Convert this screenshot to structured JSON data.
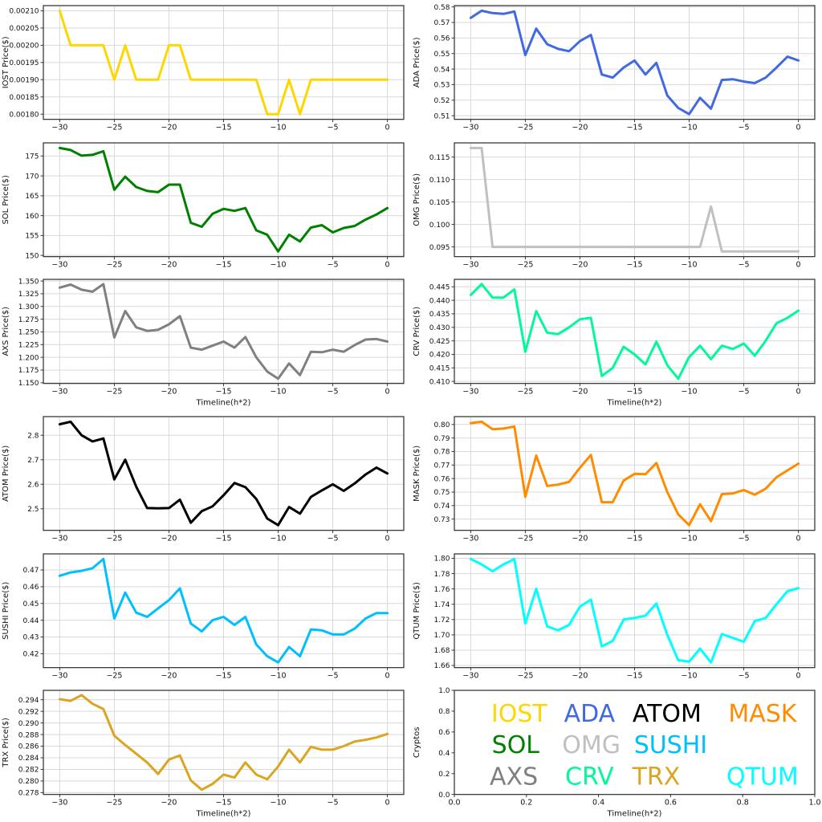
{
  "style": {
    "background": "#ffffff",
    "grid_color": "#d9d9d9",
    "spine_color": "#3a3a3a",
    "tick_label_color": "#111111"
  },
  "chart_data": {
    "type": "line",
    "layout": "6x2-multi-panel",
    "x": [
      -30,
      -29,
      -28,
      -27,
      -26,
      -25,
      -24,
      -23,
      -22,
      -21,
      -20,
      -19,
      -18,
      -17,
      -16,
      -15,
      -14,
      -13,
      -12,
      -11,
      -10,
      -9,
      -8,
      -7,
      -6,
      -5,
      -4,
      -3,
      -2,
      -1,
      0
    ],
    "xticks": [
      -30,
      -25,
      -20,
      -15,
      -10,
      -5,
      0
    ],
    "xlabel": "Timeline(h*2)",
    "grid": true,
    "panels": [
      {
        "name": "IOST",
        "ylabel": "IOST Price($)",
        "color": "#FFD700",
        "decimals": 5,
        "show_xlabel": false,
        "yticks": [
          0.0018,
          0.00185,
          0.0019,
          0.00195,
          0.002,
          0.00205,
          0.0021
        ],
        "values": [
          0.0021,
          0.002,
          0.002,
          0.002,
          0.002,
          0.0019,
          0.002,
          0.0019,
          0.0019,
          0.0019,
          0.002,
          0.002,
          0.0019,
          0.0019,
          0.0019,
          0.0019,
          0.0019,
          0.0019,
          0.0019,
          0.0018,
          0.0018,
          0.0019,
          0.0018,
          0.0019,
          0.0019,
          0.0019,
          0.0019,
          0.0019,
          0.0019,
          0.0019,
          0.0019
        ]
      },
      {
        "name": "ADA",
        "ylabel": "ADA Price($)",
        "color": "#4169E1",
        "decimals": 2,
        "show_xlabel": false,
        "yticks": [
          0.51,
          0.52,
          0.53,
          0.54,
          0.55,
          0.56,
          0.57,
          0.58
        ],
        "values": [
          0.573,
          0.5775,
          0.576,
          0.5755,
          0.577,
          0.549,
          0.566,
          0.556,
          0.553,
          0.5515,
          0.558,
          0.562,
          0.5365,
          0.5345,
          0.541,
          0.5455,
          0.5365,
          0.544,
          0.523,
          0.515,
          0.511,
          0.5215,
          0.5145,
          0.533,
          0.5335,
          0.532,
          0.531,
          0.5345,
          0.541,
          0.548,
          0.5455
        ]
      },
      {
        "name": "SOL",
        "ylabel": "SOL Price($)",
        "color": "#008000",
        "decimals": 0,
        "show_xlabel": false,
        "yticks": [
          150,
          155,
          160,
          165,
          170,
          175
        ],
        "values": [
          177,
          176.5,
          175.1,
          175.3,
          176.2,
          166.5,
          169.8,
          167.2,
          166.2,
          165.9,
          167.8,
          167.8,
          158.2,
          157.2,
          160.5,
          161.7,
          161.2,
          161.9,
          156.3,
          155.2,
          151,
          155.2,
          153.5,
          157,
          157.6,
          155.8,
          156.9,
          157.4,
          159,
          160.3,
          161.9
        ]
      },
      {
        "name": "OMG",
        "ylabel": "OMG Price($)",
        "color": "#C0C0C0",
        "decimals": 3,
        "show_xlabel": false,
        "yticks": [
          0.095,
          0.1,
          0.105,
          0.11,
          0.115
        ],
        "values": [
          0.117,
          0.117,
          0.095,
          0.095,
          0.095,
          0.095,
          0.095,
          0.095,
          0.095,
          0.095,
          0.095,
          0.095,
          0.095,
          0.095,
          0.095,
          0.095,
          0.095,
          0.095,
          0.095,
          0.095,
          0.095,
          0.095,
          0.104,
          0.094,
          0.094,
          0.094,
          0.094,
          0.094,
          0.094,
          0.094,
          0.094
        ]
      },
      {
        "name": "AXS",
        "ylabel": "AXS Price($)",
        "color": "#808080",
        "decimals": 3,
        "show_xlabel": true,
        "yticks": [
          1.15,
          1.175,
          1.2,
          1.225,
          1.25,
          1.275,
          1.3,
          1.325,
          1.35
        ],
        "values": [
          1.337,
          1.343,
          1.333,
          1.329,
          1.344,
          1.239,
          1.291,
          1.259,
          1.252,
          1.254,
          1.265,
          1.281,
          1.219,
          1.215,
          1.223,
          1.231,
          1.219,
          1.24,
          1.2,
          1.172,
          1.158,
          1.188,
          1.165,
          1.211,
          1.21,
          1.215,
          1.211,
          1.224,
          1.235,
          1.236,
          1.231
        ]
      },
      {
        "name": "CRV",
        "ylabel": "CRV Price($)",
        "color": "#00FA9A",
        "decimals": 3,
        "show_xlabel": true,
        "yticks": [
          0.41,
          0.415,
          0.42,
          0.425,
          0.43,
          0.435,
          0.44,
          0.445
        ],
        "values": [
          0.442,
          0.446,
          0.441,
          0.441,
          0.444,
          0.421,
          0.436,
          0.428,
          0.4275,
          0.43,
          0.433,
          0.4335,
          0.412,
          0.415,
          0.4228,
          0.42,
          0.4163,
          0.4247,
          0.416,
          0.411,
          0.419,
          0.4232,
          0.4182,
          0.4232,
          0.422,
          0.424,
          0.4195,
          0.425,
          0.4315,
          0.4335,
          0.4362
        ]
      },
      {
        "name": "ATOM",
        "ylabel": "ATOM  Price($)",
        "color": "#000000",
        "decimals": 1,
        "show_xlabel": false,
        "yticks": [
          2.5,
          2.6,
          2.7,
          2.8
        ],
        "values": [
          2.845,
          2.855,
          2.8,
          2.775,
          2.787,
          2.62,
          2.7,
          2.59,
          2.503,
          2.502,
          2.503,
          2.537,
          2.443,
          2.49,
          2.51,
          2.555,
          2.605,
          2.588,
          2.54,
          2.46,
          2.433,
          2.507,
          2.48,
          2.548,
          2.575,
          2.6,
          2.573,
          2.603,
          2.64,
          2.668,
          2.644
        ]
      },
      {
        "name": "MASK",
        "ylabel": "MASK  Price($)",
        "color": "#FF8C00",
        "decimals": 2,
        "show_xlabel": false,
        "yticks": [
          0.73,
          0.74,
          0.75,
          0.76,
          0.77,
          0.78,
          0.79,
          0.8
        ],
        "values": [
          0.801,
          0.802,
          0.7965,
          0.797,
          0.7985,
          0.7465,
          0.777,
          0.7545,
          0.7555,
          0.7575,
          0.768,
          0.7775,
          0.7425,
          0.7425,
          0.7585,
          0.7635,
          0.7632,
          0.7715,
          0.75,
          0.7335,
          0.7255,
          0.741,
          0.7285,
          0.7485,
          0.749,
          0.7515,
          0.748,
          0.7525,
          0.761,
          0.766,
          0.771
        ]
      },
      {
        "name": "SUSHI",
        "ylabel": "SUSHI  Price($)",
        "color": "#00BFFF",
        "decimals": 2,
        "show_xlabel": false,
        "yticks": [
          0.42,
          0.43,
          0.44,
          0.45,
          0.46,
          0.47
        ],
        "values": [
          0.4665,
          0.4685,
          0.4695,
          0.471,
          0.4765,
          0.441,
          0.4565,
          0.4445,
          0.442,
          0.447,
          0.452,
          0.459,
          0.438,
          0.4333,
          0.44,
          0.442,
          0.4372,
          0.442,
          0.4255,
          0.4185,
          0.4148,
          0.424,
          0.4185,
          0.4345,
          0.434,
          0.4315,
          0.4315,
          0.435,
          0.441,
          0.4443,
          0.4443
        ]
      },
      {
        "name": "QTUM",
        "ylabel": "QTUM Price($)",
        "color": "#00FFFF",
        "decimals": 2,
        "show_xlabel": false,
        "yticks": [
          1.66,
          1.68,
          1.7,
          1.72,
          1.74,
          1.76,
          1.78,
          1.8
        ],
        "values": [
          1.799,
          1.792,
          1.783,
          1.792,
          1.799,
          1.715,
          1.76,
          1.711,
          1.706,
          1.713,
          1.737,
          1.746,
          1.685,
          1.692,
          1.72,
          1.722,
          1.725,
          1.741,
          1.7,
          1.667,
          1.665,
          1.682,
          1.664,
          1.701,
          1.696,
          1.691,
          1.718,
          1.722,
          1.74,
          1.757,
          1.761
        ]
      },
      {
        "name": "TRX",
        "ylabel": "TRX Price($)",
        "color": "#DAA520",
        "decimals": 3,
        "show_xlabel": true,
        "yticks": [
          0.278,
          0.28,
          0.282,
          0.284,
          0.286,
          0.288,
          0.29,
          0.292,
          0.294
        ],
        "values": [
          0.2941,
          0.2938,
          0.2948,
          0.2933,
          0.2924,
          0.2878,
          0.2862,
          0.2847,
          0.2832,
          0.2812,
          0.2837,
          0.2844,
          0.2801,
          0.2785,
          0.2795,
          0.2811,
          0.2806,
          0.2832,
          0.2811,
          0.2803,
          0.2825,
          0.2854,
          0.2832,
          0.2859,
          0.2854,
          0.2854,
          0.286,
          0.2868,
          0.2871,
          0.2875,
          0.2881
        ]
      }
    ],
    "legend_panel": {
      "ylabel": "Cryptos",
      "xlabel": "Timeline(h*2)",
      "xticks": [
        0,
        0.2,
        0.4,
        0.6,
        0.8,
        1
      ],
      "yticks": [
        0,
        0.2,
        0.4,
        0.6,
        0.8,
        1
      ],
      "tick_decimals": 1,
      "entries": [
        {
          "label": "IOST",
          "color": "#FFD700",
          "x": 0.18,
          "y": 0.7
        },
        {
          "label": "ADA",
          "color": "#4169E1",
          "x": 0.375,
          "y": 0.7
        },
        {
          "label": "ATOM",
          "color": "#000000",
          "x": 0.59,
          "y": 0.7
        },
        {
          "label": "MASK",
          "color": "#FF8C00",
          "x": 0.855,
          "y": 0.7
        },
        {
          "label": "SOL",
          "color": "#008000",
          "x": 0.17,
          "y": 0.4
        },
        {
          "label": "OMG",
          "color": "#C0C0C0",
          "x": 0.38,
          "y": 0.4
        },
        {
          "label": "SUSHI",
          "color": "#00BFFF",
          "x": 0.6,
          "y": 0.4
        },
        {
          "label": "AXS",
          "color": "#808080",
          "x": 0.165,
          "y": 0.095
        },
        {
          "label": "CRV",
          "color": "#00FA9A",
          "x": 0.375,
          "y": 0.095
        },
        {
          "label": "TRX",
          "color": "#DAA520",
          "x": 0.56,
          "y": 0.095
        },
        {
          "label": "QTUM",
          "color": "#00FFFF",
          "x": 0.855,
          "y": 0.095
        }
      ]
    }
  }
}
